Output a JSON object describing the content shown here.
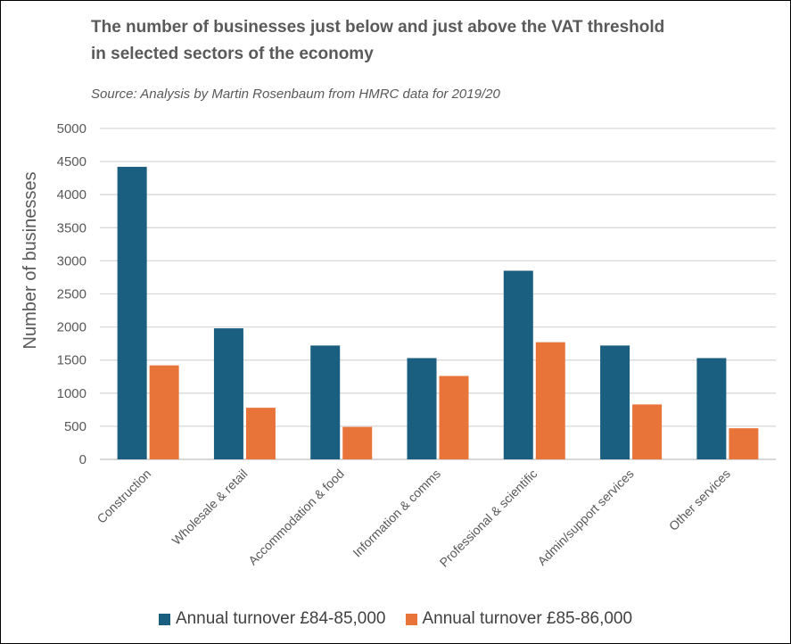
{
  "chart_data": {
    "type": "bar",
    "title": "The number of businesses just below and just above the VAT threshold in selected sectors of the economy",
    "title_lines": [
      "The number of businesses just below and just above the VAT threshold",
      "in selected sectors of the economy"
    ],
    "subtitle": "Source: Analysis by Martin Rosenbaum from HMRC data for 2019/20",
    "xlabel": "",
    "ylabel": "Number of businesses",
    "ylim": [
      0,
      5000
    ],
    "yticks": [
      0,
      500,
      1000,
      1500,
      2000,
      2500,
      3000,
      3500,
      4000,
      4500,
      5000
    ],
    "grid": true,
    "legend_position": "bottom",
    "categories": [
      "Construction",
      "Wholesale & retail",
      "Accommodation & food",
      "Information & comms",
      "Professional & scientific",
      "Admin/support services",
      "Other services"
    ],
    "series": [
      {
        "name": "Annual turnover £84-85,000",
        "color": "#1a5e80",
        "values": [
          4420,
          1980,
          1720,
          1530,
          2850,
          1720,
          1530
        ]
      },
      {
        "name": "Annual turnover £85-86,000",
        "color": "#e8743a",
        "values": [
          1420,
          780,
          490,
          1260,
          1770,
          830,
          470
        ]
      }
    ]
  }
}
